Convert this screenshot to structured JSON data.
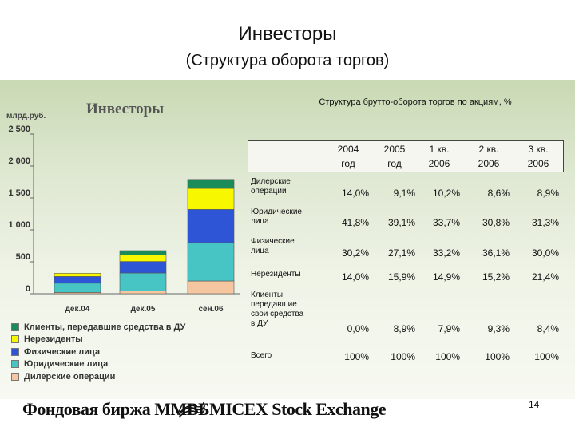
{
  "title": "Инвесторы",
  "subtitle": "(Структура оборота торгов)",
  "panel_title": "Инвесторы",
  "unit_label": "млрд.руб.",
  "table_title": "Структура брутто-оборота торгов по акциям, %",
  "chart_data": {
    "type": "bar",
    "stacked": true,
    "categories": [
      "дек.04",
      "дек.05",
      "сен.06"
    ],
    "ylim": [
      0,
      2500
    ],
    "yticks": [
      0,
      500,
      1000,
      1500,
      2000,
      2500
    ],
    "ytick_labels": [
      "0",
      "500",
      "1 000",
      "1 500",
      "2 000",
      "2 500"
    ],
    "grid": false,
    "legend_position": "bottom",
    "series": [
      {
        "name": "Дилерские операции",
        "color": "#f5c6a0",
        "values": [
          20,
          45,
          200
        ]
      },
      {
        "name": "Юридические лица",
        "color": "#47c4c4",
        "values": [
          145,
          280,
          600
        ]
      },
      {
        "name": "Физические лица",
        "color": "#2d55d6",
        "values": [
          105,
          180,
          520
        ]
      },
      {
        "name": "Нерезиденты",
        "color": "#f7f700",
        "values": [
          50,
          100,
          330
        ]
      },
      {
        "name": "Клиенты, передавшие средства в ДУ",
        "color": "#1a8c5a",
        "values": [
          0,
          70,
          140
        ]
      }
    ],
    "legend_order": [
      "Клиенты, передавшие средства в ДУ",
      "Нерезиденты",
      "Физические лица",
      "Юридические лица",
      "Дилерские операции"
    ]
  },
  "table": {
    "columns": [
      [
        "2004",
        "год"
      ],
      [
        "2005",
        "год"
      ],
      [
        "1 кв.",
        "2006"
      ],
      [
        "2 кв.",
        "2006"
      ],
      [
        "3 кв.",
        "2006"
      ]
    ],
    "rows": [
      {
        "label": [
          "Дилерские",
          "операции"
        ],
        "values": [
          "14,0%",
          "9,1%",
          "10,2%",
          "8,6%",
          "8,9%"
        ]
      },
      {
        "label": [
          "Юридические",
          "лица"
        ],
        "values": [
          "41,8%",
          "39,1%",
          "33,7%",
          "30,8%",
          "31,3%"
        ]
      },
      {
        "label": [
          "Физические",
          "лица"
        ],
        "values": [
          "30,2%",
          "27,1%",
          "33,2%",
          "36,1%",
          "30,0%"
        ]
      },
      {
        "label": [
          "Нерезиденты"
        ],
        "values": [
          "14,0%",
          "15,9%",
          "14,9%",
          "15,2%",
          "21,4%"
        ]
      },
      {
        "label": [
          "Клиенты,",
          "передавшие",
          "свои средства",
          "в ДУ"
        ],
        "values": [
          "0,0%",
          "8,9%",
          "7,9%",
          "9,3%",
          "8,4%"
        ]
      },
      {
        "label": [
          "Всего"
        ],
        "values": [
          "100%",
          "100%",
          "100%",
          "100%",
          "100%"
        ]
      }
    ]
  },
  "footer": {
    "logo_ru": "Фондовая биржа ММВБ",
    "logo_en": "MICEX Stock Exchange",
    "page_number": "14"
  }
}
